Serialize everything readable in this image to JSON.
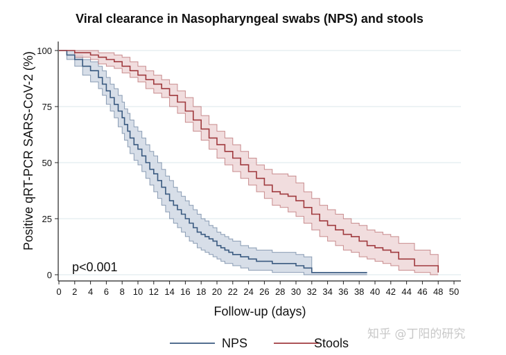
{
  "chart_data": {
    "type": "line",
    "subtype": "kaplan-meier step curves with confidence bands",
    "title": "Viral clearance in Nasopharyngeal swabs (NPS) and stools",
    "xlabel": "Follow-up (days)",
    "ylabel": "Positive qRT-PCR SARS-CoV-2 (%)",
    "xlim": [
      0,
      50
    ],
    "ylim": [
      0,
      100
    ],
    "xticks": [
      0,
      2,
      4,
      6,
      8,
      10,
      12,
      14,
      16,
      18,
      20,
      22,
      24,
      26,
      28,
      30,
      32,
      34,
      36,
      38,
      40,
      42,
      44,
      46,
      48,
      50
    ],
    "yticks": [
      0,
      25,
      50,
      75,
      100
    ],
    "grid": "horizontal",
    "annotation": "p<0.001",
    "legend_position": "bottom",
    "series": [
      {
        "name": "NPS",
        "color": "#3a5a80",
        "band_color": "#c9d3e0",
        "x": [
          0,
          1,
          2,
          3,
          4,
          5,
          5.5,
          6,
          6.5,
          7,
          7.5,
          8,
          8.3,
          8.7,
          9,
          9.5,
          10,
          10.5,
          11,
          11.5,
          12,
          12.5,
          13,
          13.5,
          14,
          14.5,
          15,
          15.5,
          16,
          16.5,
          17,
          17.5,
          18,
          18.5,
          19,
          19.5,
          20,
          20.5,
          21,
          21.5,
          22,
          23,
          24,
          25,
          27,
          30,
          31,
          32,
          39
        ],
        "value": [
          100,
          98,
          96,
          93,
          91,
          88,
          85,
          82,
          79,
          76,
          73,
          70,
          67,
          64,
          61,
          58,
          56,
          53,
          50,
          47,
          45,
          42,
          39,
          36,
          33,
          31,
          29,
          27,
          25,
          23,
          21,
          19,
          18,
          17,
          16,
          15,
          13,
          12,
          11,
          10,
          9,
          8,
          7,
          6,
          5,
          4,
          3,
          1,
          1
        ],
        "lower": [
          100,
          96,
          93,
          89,
          86,
          83,
          80,
          76,
          73,
          70,
          66,
          63,
          60,
          57,
          54,
          51,
          49,
          46,
          43,
          40,
          37,
          34,
          31,
          28,
          25,
          23,
          21,
          19,
          17,
          15,
          14,
          12,
          11,
          10,
          9,
          8,
          7,
          6,
          5,
          5,
          4,
          3,
          2,
          2,
          1,
          1,
          0,
          0,
          0
        ],
        "upper": [
          100,
          100,
          98,
          96,
          95,
          93,
          91,
          88,
          85,
          83,
          80,
          77,
          74,
          72,
          69,
          66,
          64,
          61,
          58,
          55,
          53,
          50,
          47,
          44,
          42,
          39,
          37,
          35,
          33,
          31,
          29,
          27,
          25,
          24,
          22,
          21,
          19,
          18,
          17,
          16,
          15,
          13,
          12,
          11,
          10,
          9,
          8,
          1,
          1
        ],
        "x_end": 39
      },
      {
        "name": "Stools",
        "color": "#a03a3e",
        "band_color": "#ecd2d3",
        "x": [
          0,
          2,
          4,
          5,
          6,
          7,
          8,
          9,
          10,
          11,
          12,
          13,
          14,
          15,
          16,
          17,
          18,
          19,
          20,
          21,
          22,
          23,
          24,
          25,
          26,
          27,
          28,
          29,
          30,
          31,
          32,
          33,
          34,
          35,
          36,
          37,
          38,
          39,
          40,
          41,
          42,
          43,
          45,
          47,
          48
        ],
        "value": [
          100,
          99,
          98,
          97,
          96,
          95,
          93,
          91,
          89,
          87,
          85,
          83,
          80,
          77,
          73,
          69,
          65,
          61,
          58,
          55,
          52,
          49,
          46,
          43,
          40,
          37,
          36,
          35,
          33,
          30,
          27,
          24,
          22,
          20,
          18,
          17,
          15,
          13,
          12,
          11,
          10,
          7,
          4,
          4,
          1
        ],
        "lower": [
          100,
          97,
          96,
          94,
          93,
          92,
          90,
          88,
          86,
          83,
          81,
          79,
          75,
          72,
          68,
          64,
          60,
          56,
          52,
          49,
          46,
          43,
          40,
          37,
          34,
          31,
          30,
          28,
          26,
          23,
          20,
          17,
          15,
          13,
          11,
          10,
          8,
          7,
          6,
          5,
          4,
          2,
          1,
          0,
          0
        ],
        "upper": [
          100,
          100,
          100,
          99,
          99,
          98,
          97,
          95,
          93,
          91,
          89,
          87,
          85,
          82,
          79,
          75,
          71,
          67,
          64,
          61,
          58,
          55,
          52,
          49,
          47,
          45,
          45,
          44,
          41,
          37,
          34,
          31,
          29,
          27,
          25,
          23,
          22,
          20,
          19,
          18,
          17,
          14,
          11,
          9,
          1
        ],
        "x_end": 48
      }
    ]
  },
  "watermark": "知乎 @丁阳的研究"
}
